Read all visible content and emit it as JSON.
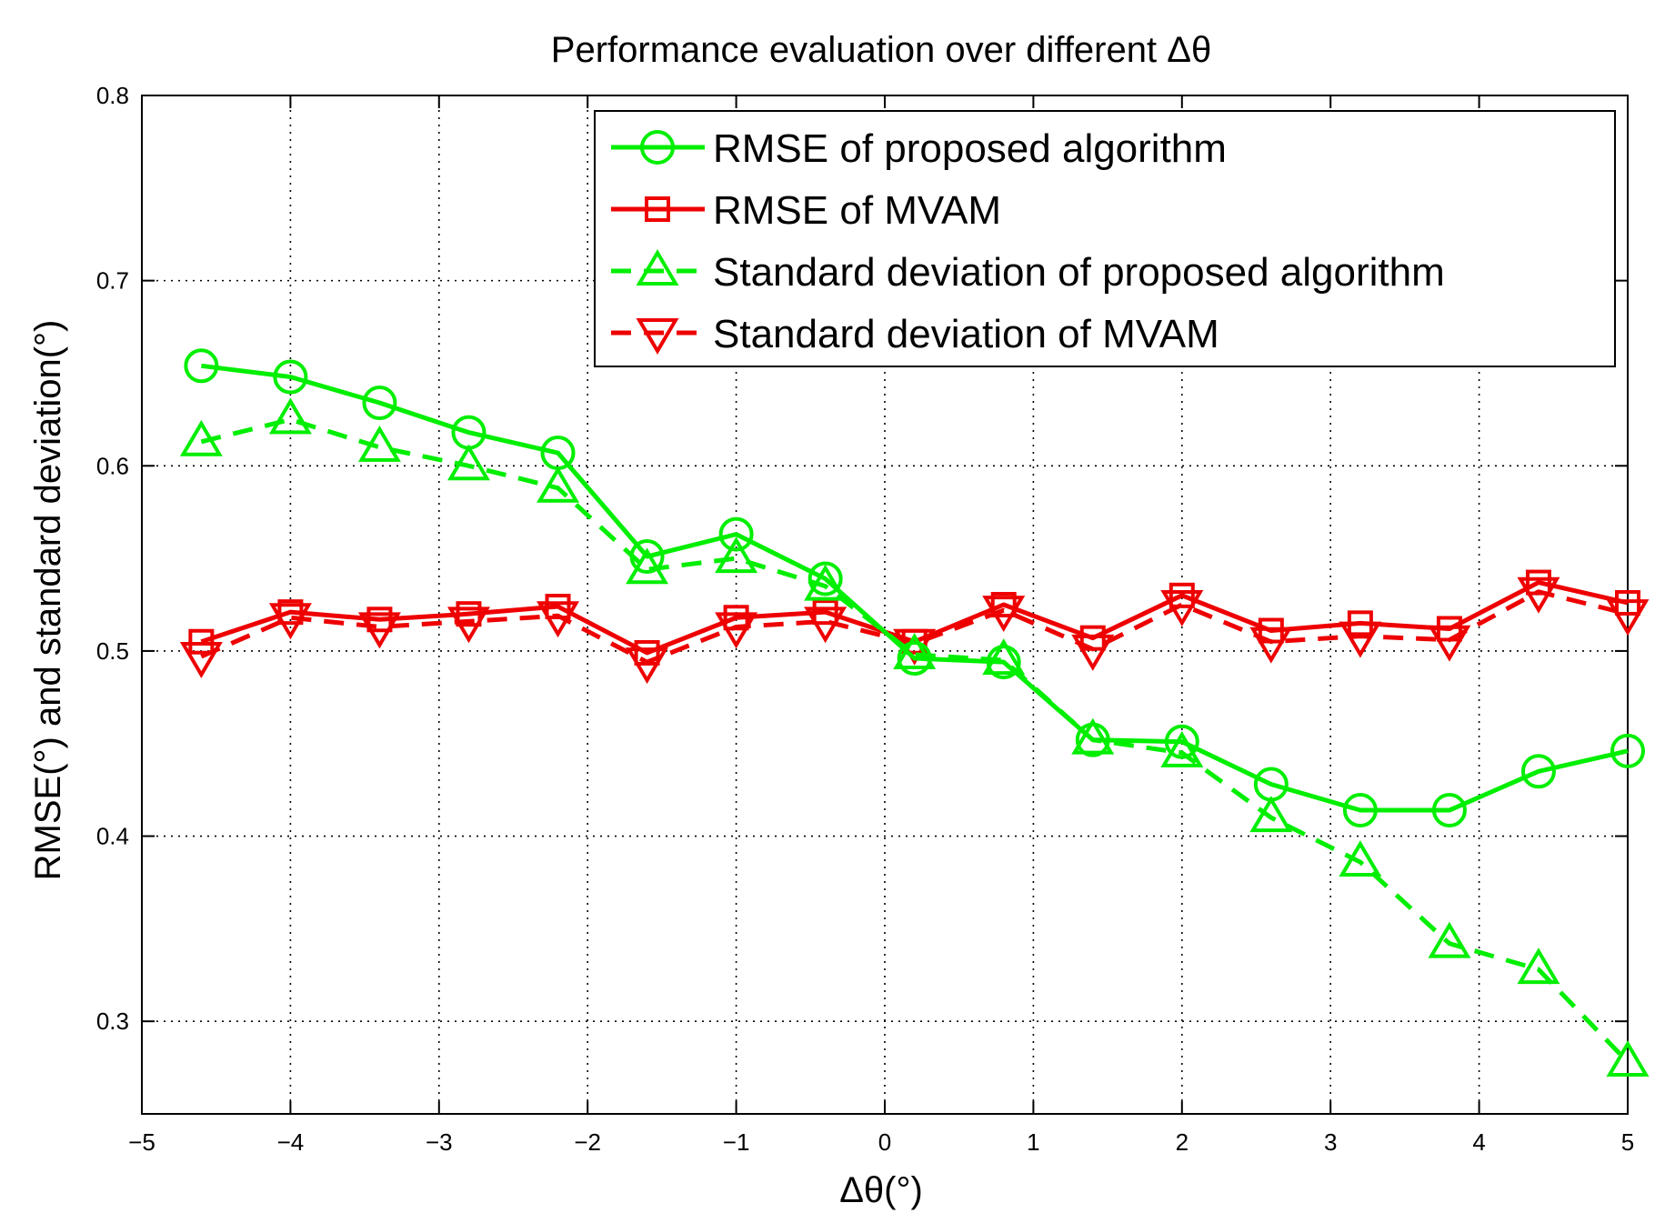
{
  "chart_data": {
    "type": "line",
    "title": "Performance evaluation over different Δθ",
    "xlabel": "Δθ(°)",
    "ylabel": "RMSE(°) and standard deviation(°)",
    "xlim": [
      -5,
      5
    ],
    "ylim": [
      0.25,
      0.8
    ],
    "xticks": [
      -5,
      -4,
      -3,
      -2,
      -1,
      0,
      1,
      2,
      3,
      4,
      5
    ],
    "xtick_labels": [
      "−5",
      "−4",
      "−3",
      "−2",
      "−1",
      "0",
      "1",
      "2",
      "3",
      "4",
      "5"
    ],
    "yticks": [
      0.3,
      0.4,
      0.5,
      0.6,
      0.7,
      0.8
    ],
    "ytick_labels": [
      "0.3",
      "0.4",
      "0.5",
      "0.6",
      "0.7",
      "0.8"
    ],
    "grid": true,
    "legend_position": "top-right",
    "x": [
      -4.6,
      -4.0,
      -3.4,
      -2.8,
      -2.2,
      -1.6,
      -1.0,
      -0.4,
      0.2,
      0.8,
      1.4,
      2.0,
      2.6,
      3.2,
      3.8,
      4.4,
      5.0
    ],
    "series": [
      {
        "name": "RMSE of proposed algorithm",
        "color": "#00ee00",
        "line": "solid",
        "marker": "circle",
        "values": [
          0.654,
          0.648,
          0.634,
          0.618,
          0.607,
          0.551,
          0.563,
          0.539,
          0.496,
          0.494,
          0.452,
          0.451,
          0.428,
          0.414,
          0.414,
          0.435,
          0.446
        ]
      },
      {
        "name": "RMSE of MVAM",
        "color": "#ee0000",
        "line": "solid",
        "marker": "square",
        "values": [
          0.505,
          0.521,
          0.517,
          0.52,
          0.524,
          0.499,
          0.518,
          0.521,
          0.505,
          0.525,
          0.507,
          0.53,
          0.511,
          0.515,
          0.512,
          0.537,
          0.526
        ]
      },
      {
        "name": "Standard deviation of proposed algorithm",
        "color": "#00ee00",
        "line": "dashed",
        "marker": "triangle-up",
        "values": [
          0.613,
          0.625,
          0.61,
          0.6,
          0.588,
          0.544,
          0.55,
          0.535,
          0.498,
          0.495,
          0.452,
          0.445,
          0.41,
          0.386,
          0.342,
          0.328,
          0.278
        ]
      },
      {
        "name": "Standard deviation of MVAM",
        "color": "#ee0000",
        "line": "dashed",
        "marker": "triangle-down",
        "values": [
          0.497,
          0.518,
          0.513,
          0.516,
          0.519,
          0.494,
          0.513,
          0.516,
          0.504,
          0.522,
          0.501,
          0.525,
          0.505,
          0.508,
          0.506,
          0.532,
          0.52
        ]
      }
    ]
  }
}
